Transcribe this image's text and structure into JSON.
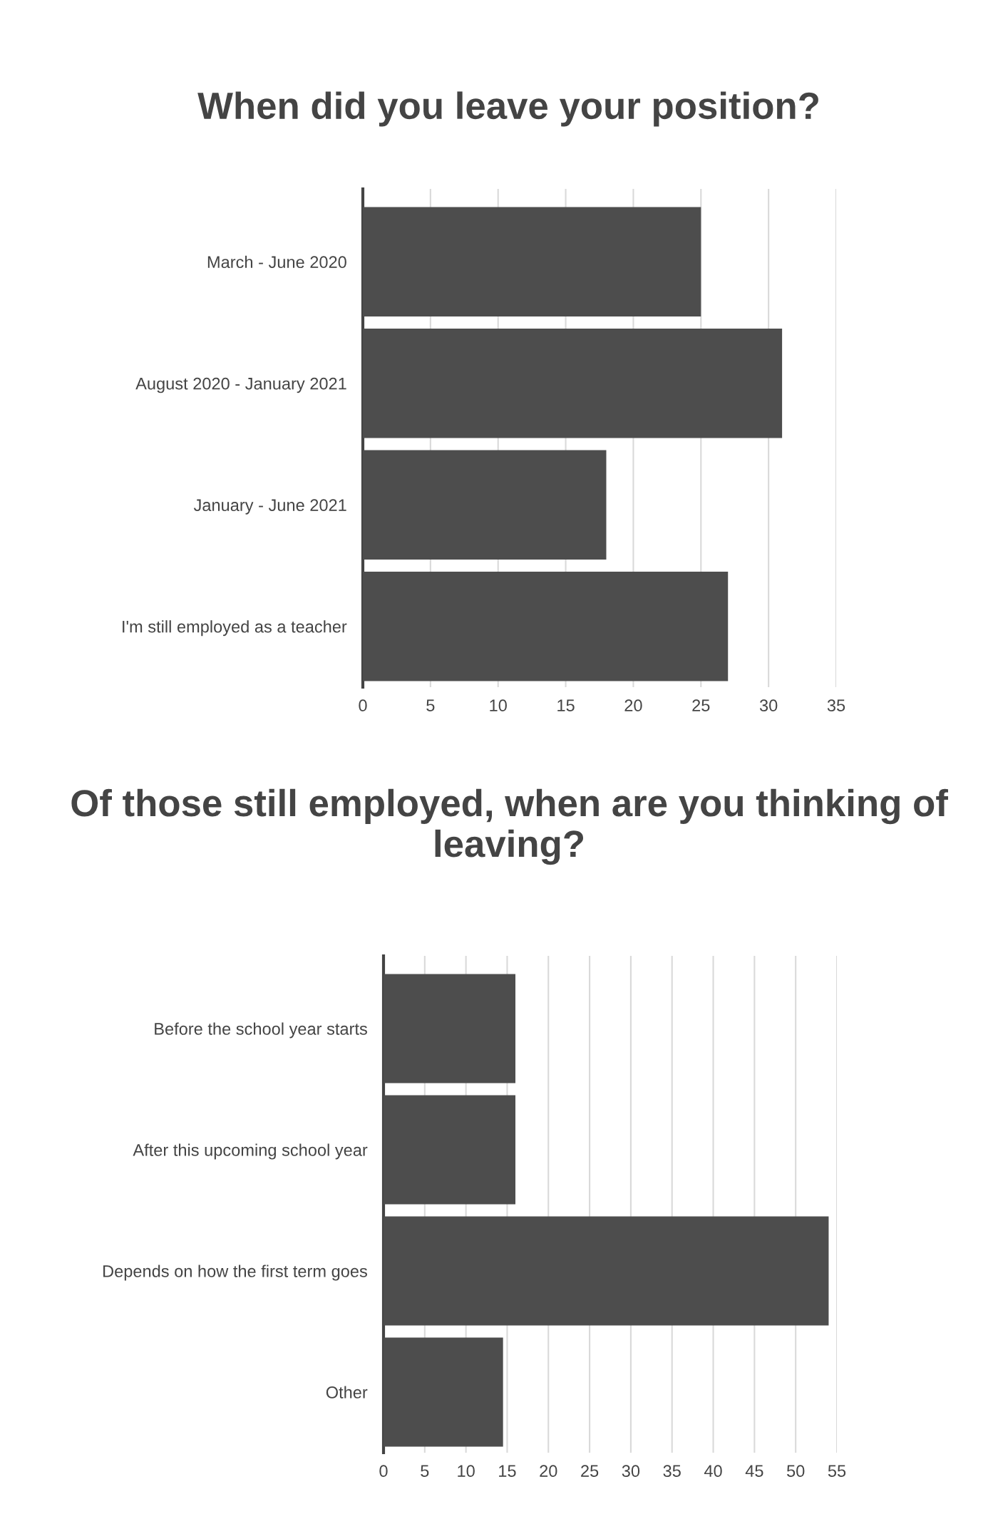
{
  "chart_data": [
    {
      "type": "bar",
      "orientation": "horizontal",
      "title": "When did you leave your position?",
      "categories": [
        "March - June 2020",
        "August 2020 - January 2021",
        "January - June 2021",
        "I'm still employed as a teacher"
      ],
      "values": [
        25,
        31,
        18,
        27
      ],
      "color": "#4d4d4d",
      "xlim": [
        0,
        35
      ],
      "xticks": [
        0,
        5,
        10,
        15,
        20,
        25,
        30,
        35
      ],
      "grid": "x"
    },
    {
      "type": "bar",
      "orientation": "horizontal",
      "title": "Of those still employed, when are you thinking of leaving?",
      "categories": [
        "Before the school year starts",
        "After this upcoming school year",
        "Depends on how the first term goes",
        "Other"
      ],
      "values": [
        16,
        16,
        54,
        14.5
      ],
      "color": "#4d4d4d",
      "xlim": [
        0,
        55
      ],
      "xticks": [
        0,
        5,
        10,
        15,
        20,
        25,
        30,
        35,
        40,
        45,
        50,
        55
      ],
      "grid": "x"
    }
  ]
}
